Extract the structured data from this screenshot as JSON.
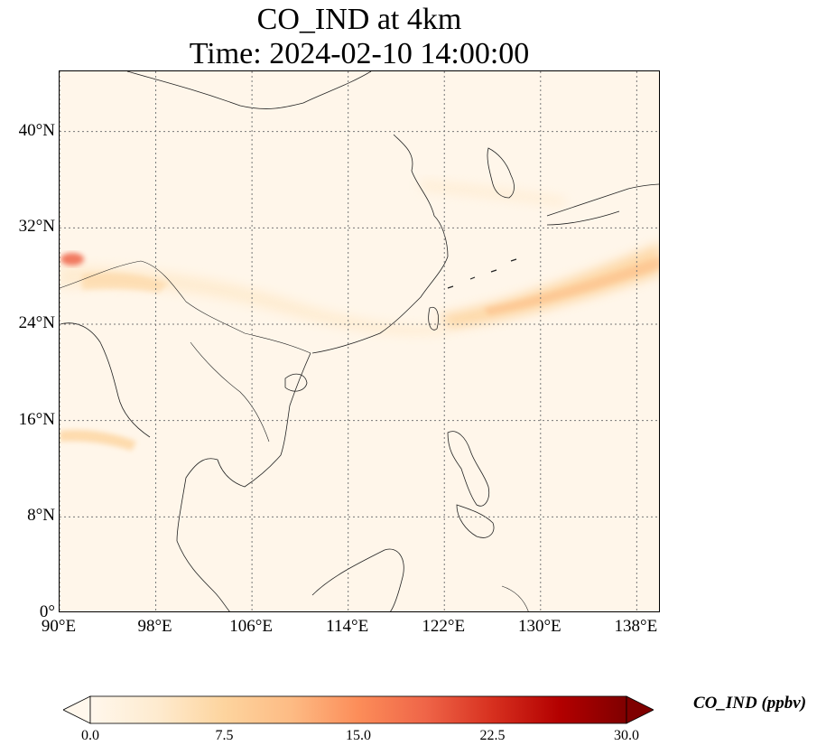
{
  "title": {
    "line1": "CO_IND at 4km",
    "line2": "Time: 2024-02-10 14:00:00"
  },
  "map": {
    "extent_lon": [
      90,
      140
    ],
    "extent_lat": [
      0,
      45
    ],
    "lat_ticks": [
      {
        "value": 0,
        "label": "0°"
      },
      {
        "value": 8,
        "label": "8°N"
      },
      {
        "value": 16,
        "label": "16°N"
      },
      {
        "value": 24,
        "label": "24°N"
      },
      {
        "value": 32,
        "label": "32°N"
      },
      {
        "value": 40,
        "label": "40°N"
      }
    ],
    "lon_ticks": [
      {
        "value": 90,
        "label": "90°E"
      },
      {
        "value": 98,
        "label": "98°E"
      },
      {
        "value": 106,
        "label": "106°E"
      },
      {
        "value": 114,
        "label": "114°E"
      },
      {
        "value": 122,
        "label": "122°E"
      },
      {
        "value": 130,
        "label": "130°E"
      },
      {
        "value": 138,
        "label": "138°E"
      }
    ],
    "gridlines": true,
    "background_color": "#fff6ea"
  },
  "colorbar": {
    "label": "CO_IND (ppbv)",
    "colormap": "OrRd",
    "vmin": 0.0,
    "vmax": 30.0,
    "extend": "both",
    "ticks": [
      {
        "value": 0.0,
        "label": "0.0"
      },
      {
        "value": 7.5,
        "label": "7.5"
      },
      {
        "value": 15.0,
        "label": "15.0"
      },
      {
        "value": 22.5,
        "label": "22.5"
      },
      {
        "value": 30.0,
        "label": "30.0"
      }
    ],
    "stops": [
      {
        "value": 0.0,
        "color": "#fff7ec"
      },
      {
        "value": 3.75,
        "color": "#feebcf"
      },
      {
        "value": 7.5,
        "color": "#fdd49e"
      },
      {
        "value": 11.25,
        "color": "#fdbb84"
      },
      {
        "value": 15.0,
        "color": "#fc8d59"
      },
      {
        "value": 18.75,
        "color": "#ef6548"
      },
      {
        "value": 22.5,
        "color": "#d7301f"
      },
      {
        "value": 26.25,
        "color": "#b30000"
      },
      {
        "value": 30.0,
        "color": "#7f0000"
      }
    ]
  }
}
